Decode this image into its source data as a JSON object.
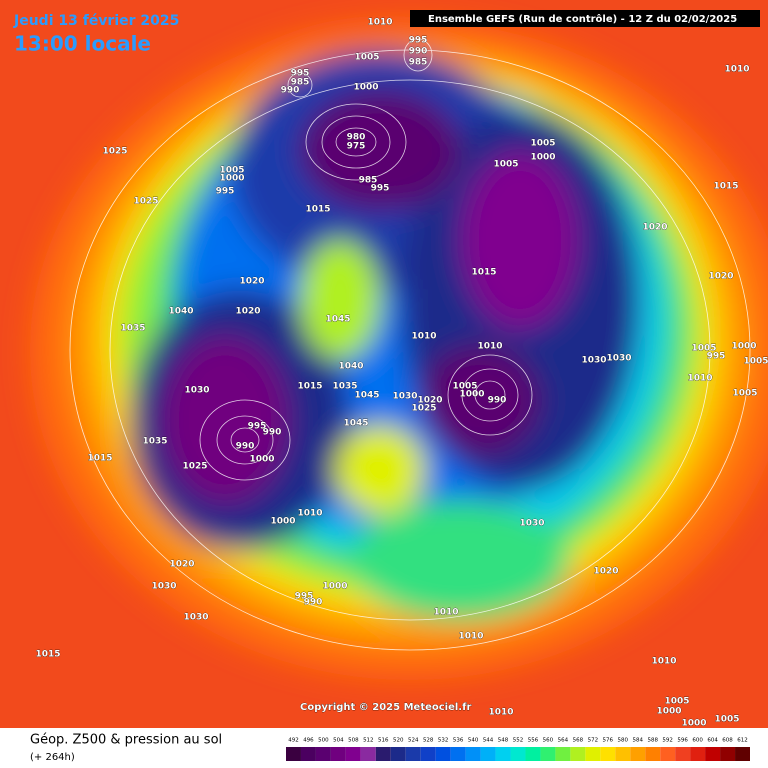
{
  "header": {
    "date": "Jeudi 13 février 2025",
    "time": "13:00 locale",
    "run": "Ensemble GEFS  (Run de contrôle)  - 12 Z du 02/02/2025"
  },
  "copyright": "Copyright © 2025 Meteociel.fr",
  "footer": {
    "title": "Géop. Z500 & pression au sol",
    "subtitle": "(+ 264h)"
  },
  "scale": {
    "labels": [
      492,
      496,
      500,
      504,
      508,
      512,
      516,
      520,
      524,
      528,
      532,
      536,
      540,
      544,
      548,
      552,
      556,
      560,
      564,
      568,
      572,
      576,
      580,
      584,
      588,
      592,
      596,
      600,
      604,
      608,
      612
    ],
    "colors": [
      "#3a0040",
      "#4b0060",
      "#5a0070",
      "#70007f",
      "#80008f",
      "#8a2aa0",
      "#2a1b6e",
      "#1c2a8a",
      "#1a3aaa",
      "#1040c8",
      "#0050e0",
      "#0070f0",
      "#0090f8",
      "#00b0f8",
      "#00d0f0",
      "#00e8d0",
      "#00f0a0",
      "#30f070",
      "#70f040",
      "#b0f020",
      "#e0f000",
      "#ffe000",
      "#ffc000",
      "#ffa000",
      "#ff8000",
      "#ff6020",
      "#f04020",
      "#e02010",
      "#c00000",
      "#900000",
      "#600000"
    ]
  },
  "isobar_labels": [
    1010,
    995,
    990,
    985,
    1005,
    995,
    985,
    990,
    1000,
    1010,
    1025,
    980,
    975,
    1005,
    1000,
    995,
    1025,
    985,
    995,
    1005,
    1000,
    1005,
    1015,
    1015,
    1020,
    1015,
    1020,
    1020,
    1040,
    1020,
    1045,
    1035,
    1010,
    1010,
    1030,
    1030,
    1005,
    995,
    1000,
    1005,
    1010,
    1015,
    1035,
    1030,
    1040,
    1045,
    1005,
    1000,
    990,
    1020,
    1030,
    1025,
    1005,
    995,
    990,
    1045,
    1035,
    990,
    1015,
    1000,
    1025,
    1010,
    1000,
    1030,
    1020,
    1020,
    1030,
    1000,
    995,
    990,
    1030,
    1010,
    1010,
    1015,
    1010,
    1010,
    1005,
    1000,
    1000,
    1005
  ]
}
